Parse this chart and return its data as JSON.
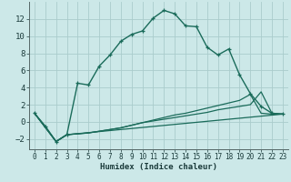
{
  "xlabel": "Humidex (Indice chaleur)",
  "background_color": "#cce8e8",
  "grid_color": "#aacccc",
  "line_color": "#1a6b5a",
  "xlim": [
    -0.5,
    23.5
  ],
  "ylim": [
    -3.2,
    14.0
  ],
  "xticks": [
    0,
    1,
    2,
    3,
    4,
    5,
    6,
    7,
    8,
    9,
    10,
    11,
    12,
    13,
    14,
    15,
    16,
    17,
    18,
    19,
    20,
    21,
    22,
    23
  ],
  "yticks": [
    -2,
    0,
    2,
    4,
    6,
    8,
    10,
    12
  ],
  "line1_x": [
    0,
    1,
    2,
    3,
    4,
    5,
    6,
    7,
    8,
    9,
    10,
    11,
    12,
    13,
    14,
    15,
    16,
    17,
    18,
    19,
    20,
    21,
    22,
    23
  ],
  "line1_y": [
    1.0,
    -0.5,
    -2.3,
    -1.5,
    4.5,
    4.3,
    6.5,
    7.8,
    9.4,
    10.2,
    10.6,
    12.1,
    13.0,
    12.6,
    11.2,
    11.1,
    8.7,
    7.8,
    8.5,
    5.5,
    3.3,
    1.8,
    1.0,
    0.9
  ],
  "line2_x": [
    0,
    2,
    3,
    4,
    5,
    6,
    7,
    8,
    9,
    10,
    11,
    12,
    13,
    14,
    15,
    16,
    17,
    18,
    19,
    20,
    21,
    22,
    23
  ],
  "line2_y": [
    1.0,
    -2.3,
    -1.5,
    -1.4,
    -1.3,
    -1.1,
    -0.9,
    -0.7,
    -0.4,
    -0.1,
    0.2,
    0.5,
    0.8,
    1.0,
    1.3,
    1.6,
    1.9,
    2.2,
    2.5,
    3.2,
    1.0,
    0.9,
    0.9
  ],
  "line3_x": [
    0,
    2,
    3,
    4,
    5,
    6,
    7,
    8,
    9,
    10,
    11,
    12,
    13,
    14,
    15,
    16,
    17,
    18,
    19,
    20,
    21,
    22,
    23
  ],
  "line3_y": [
    1.0,
    -2.3,
    -1.5,
    -1.4,
    -1.3,
    -1.1,
    -0.9,
    -0.7,
    -0.4,
    -0.1,
    0.1,
    0.3,
    0.5,
    0.7,
    0.9,
    1.1,
    1.4,
    1.6,
    1.8,
    2.0,
    3.5,
    1.0,
    0.9
  ],
  "line4_x": [
    0,
    2,
    3,
    23
  ],
  "line4_y": [
    1.0,
    -2.3,
    -1.5,
    0.9
  ]
}
